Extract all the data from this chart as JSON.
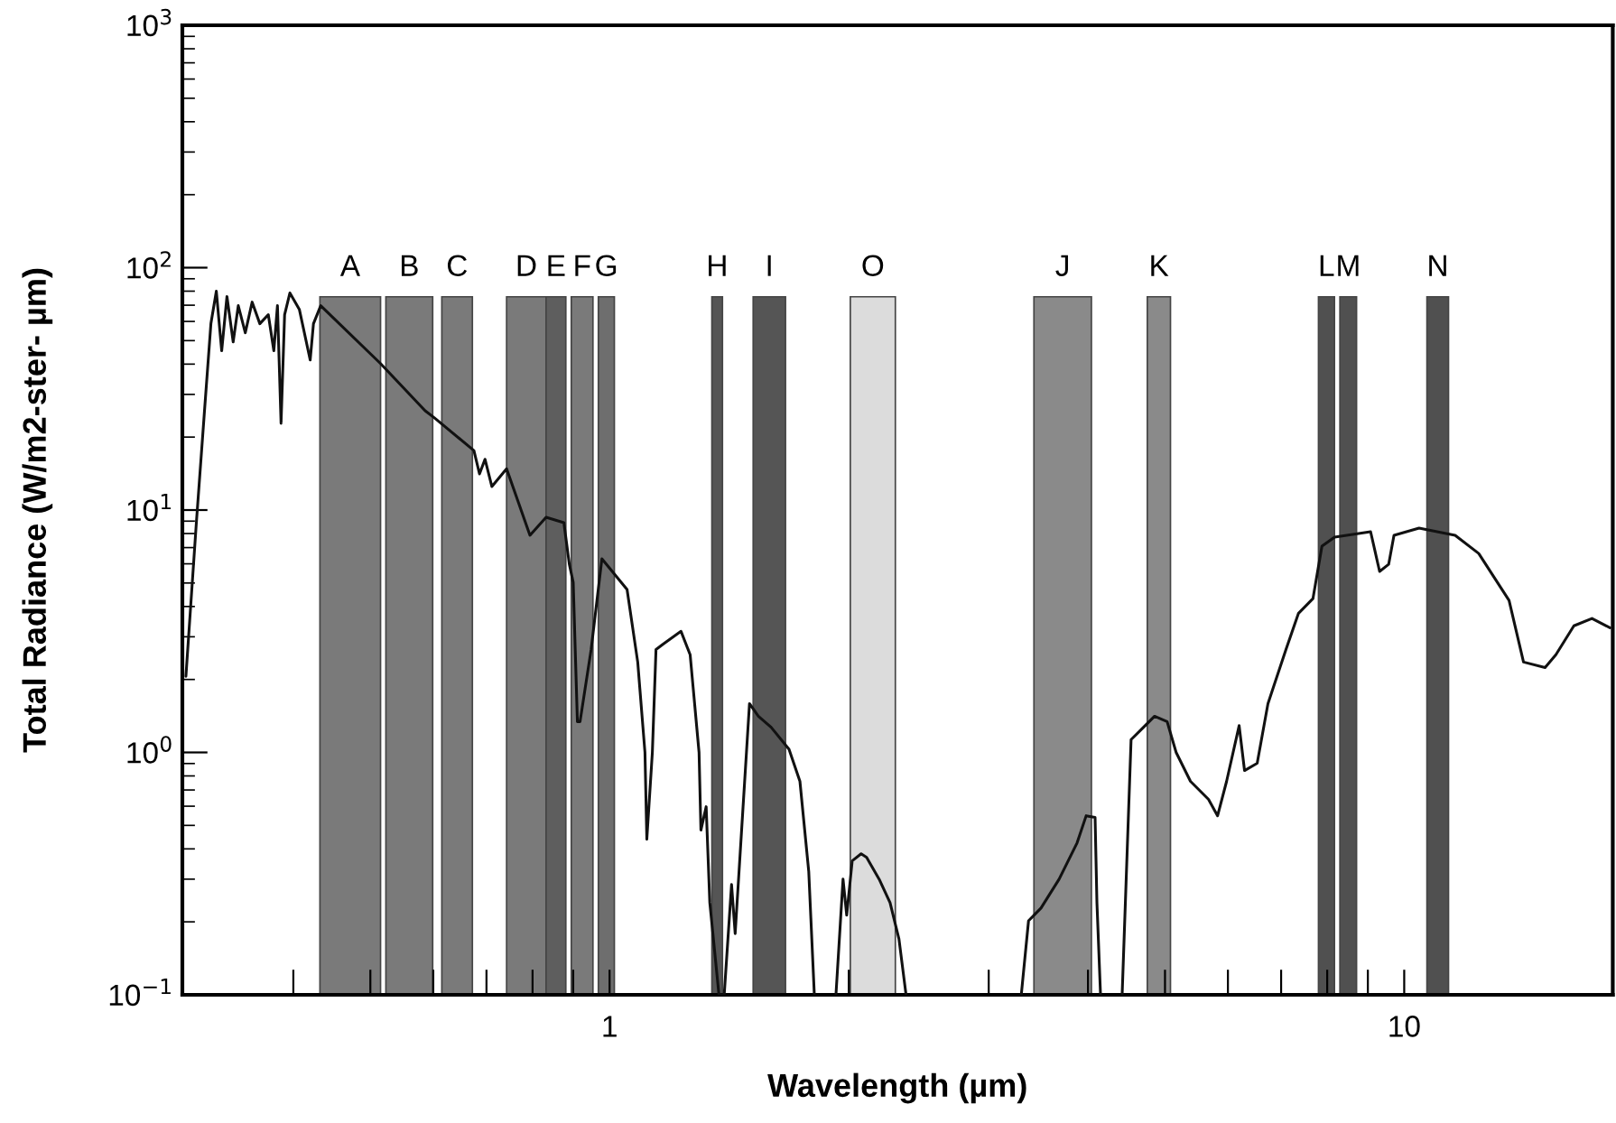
{
  "chart_data": {
    "type": "line",
    "xlabel": "Wavelength (µm)",
    "ylabel": "Total Radiance (W/m2-ster- µm)",
    "log": "xy",
    "grid": false,
    "legend": false,
    "marker": "none",
    "line_style": "solid",
    "xlim": [
      0.29,
      18.3
    ],
    "ylim": [
      0.1,
      1000
    ],
    "xticks": [
      {
        "value": 0.4,
        "label": null
      },
      {
        "value": 0.5,
        "label": null
      },
      {
        "value": 0.6,
        "label": null
      },
      {
        "value": 0.7,
        "label": null
      },
      {
        "value": 0.8,
        "label": null
      },
      {
        "value": 0.9,
        "label": null
      },
      1,
      {
        "value": 2,
        "label": null
      },
      {
        "value": 3,
        "label": null
      },
      {
        "value": 4,
        "label": null
      },
      {
        "value": 5,
        "label": null
      },
      {
        "value": 6,
        "label": null
      },
      {
        "value": 7,
        "label": null
      },
      {
        "value": 8,
        "label": null
      },
      {
        "value": 9,
        "label": null
      },
      10
    ],
    "yticks": [
      {
        "value": 0.1,
        "label": "10$^{−1}$"
      },
      {
        "value": 1,
        "label": "10$^{0}$"
      },
      {
        "value": 10,
        "label": "10$^{1}$"
      },
      {
        "value": 100,
        "label": "10$^{2}$"
      },
      {
        "value": 1000,
        "label": "10$^{3}$"
      }
    ],
    "bands": [
      {
        "axis": "x",
        "from": 0.432,
        "to": 0.515,
        "label": "A",
        "color": "#7a7a7a"
      },
      {
        "axis": "x",
        "from": 0.523,
        "to": 0.599,
        "label": "B",
        "color": "#7a7a7a"
      },
      {
        "axis": "x",
        "from": 0.615,
        "to": 0.672,
        "label": "C",
        "color": "#7a7a7a"
      },
      {
        "axis": "x",
        "from": 0.742,
        "to": 0.832,
        "label": "D",
        "color": "#7a7a7a"
      },
      {
        "axis": "x",
        "from": 0.832,
        "to": 0.881,
        "label": "E",
        "color": "#5e5e5e"
      },
      {
        "axis": "x",
        "from": 0.895,
        "to": 0.953,
        "label": "F",
        "color": "#7a7a7a"
      },
      {
        "axis": "x",
        "from": 0.968,
        "to": 1.014,
        "label": "G",
        "color": "#6e6e6e"
      },
      {
        "axis": "x",
        "from": 1.345,
        "to": 1.387,
        "label": "H",
        "color": "#555555"
      },
      {
        "axis": "x",
        "from": 1.516,
        "to": 1.665,
        "label": "I",
        "color": "#555555"
      },
      {
        "axis": "x",
        "from": 2.009,
        "to": 2.289,
        "label": "O",
        "color": "#dcdcdc"
      },
      {
        "axis": "x",
        "from": 3.42,
        "to": 4.04,
        "label": "J",
        "color": "#8a8a8a"
      },
      {
        "axis": "x",
        "from": 4.75,
        "to": 5.08,
        "label": "K",
        "color": "#8a8a8a"
      },
      {
        "axis": "x",
        "from": 7.8,
        "to": 8.17,
        "label": "L",
        "color": "#505050"
      },
      {
        "axis": "x",
        "from": 8.3,
        "to": 8.71,
        "label": "M",
        "color": "#505050"
      },
      {
        "axis": "x",
        "from": 10.68,
        "to": 11.37,
        "label": "N",
        "color": "#505050"
      }
    ],
    "series": [
      {
        "color": "#111111",
        "x": [
          0.293,
          0.302,
          0.309,
          0.315,
          0.32,
          0.325,
          0.33,
          0.336,
          0.341,
          0.348,
          0.355,
          0.363,
          0.372,
          0.378,
          0.382,
          0.386,
          0.39,
          0.396,
          0.407,
          0.42,
          0.424,
          0.433,
          0.515,
          0.586,
          0.602,
          0.675,
          0.686,
          0.697,
          0.711,
          0.742,
          0.794,
          0.832,
          0.876,
          0.89,
          0.9,
          0.911,
          0.918,
          0.948,
          0.978,
          1.052,
          1.085,
          1.108,
          1.114,
          1.132,
          1.144,
          1.168,
          1.23,
          1.263,
          1.296,
          1.303,
          1.323,
          1.337,
          1.373,
          1.394,
          1.424,
          1.439,
          1.5,
          1.539,
          1.597,
          1.682,
          1.736,
          1.781,
          1.81,
          1.87,
          1.927,
          1.967,
          1.988,
          2.02,
          2.073,
          2.106,
          2.184,
          2.254,
          2.313,
          2.361,
          2.8,
          3.297,
          3.367,
          3.491,
          3.679,
          3.876,
          3.979,
          4.083,
          4.105,
          4.148,
          4.3,
          4.416,
          4.532,
          4.652,
          4.851,
          5.031,
          5.164,
          5.383,
          5.672,
          5.823,
          5.977,
          6.198,
          6.296,
          6.531,
          6.738,
          7.099,
          7.362,
          7.676,
          7.879,
          8.174,
          9.072,
          9.312,
          9.559,
          9.708,
          10.44,
          11.59,
          12.41,
          13.55,
          14.13,
          15.04,
          15.52,
          16.35,
          17.23,
          18.15
        ],
        "values": [
          2.06,
          8.87,
          24.9,
          58.7,
          80.0,
          45.4,
          76.0,
          49.4,
          69.7,
          53.9,
          72.1,
          58.7,
          64.0,
          45.4,
          69.7,
          22.8,
          64.0,
          78.6,
          67.3,
          41.6,
          58.7,
          69.7,
          40.2,
          25.7,
          24.0,
          17.6,
          14.1,
          16.2,
          12.5,
          14.8,
          7.87,
          9.34,
          8.87,
          5.97,
          5.03,
          1.34,
          1.34,
          2.66,
          6.29,
          4.7,
          2.36,
          1.0,
          0.438,
          1.0,
          2.66,
          2.8,
          3.16,
          2.53,
          1.0,
          0.478,
          0.597,
          0.24,
          0.1,
          0.1,
          0.285,
          0.179,
          1.59,
          1.41,
          1.27,
          1.03,
          0.76,
          0.322,
          0.1,
          null,
          0.1,
          0.3,
          0.213,
          0.357,
          0.382,
          0.369,
          0.3,
          0.24,
          0.17,
          0.1,
          null,
          0.1,
          0.202,
          0.228,
          0.3,
          0.424,
          0.548,
          0.539,
          0.24,
          0.1,
          null,
          0.1,
          1.13,
          1.23,
          1.41,
          1.34,
          1.0,
          0.76,
          0.64,
          0.548,
          0.76,
          1.29,
          0.842,
          0.902,
          1.59,
          2.66,
          3.75,
          4.31,
          7.09,
          7.73,
          8.14,
          5.58,
          5.97,
          7.87,
          8.42,
          7.87,
          6.62,
          4.24,
          2.36,
          2.24,
          2.53,
          3.33,
          3.57,
          3.27
        ]
      }
    ]
  }
}
